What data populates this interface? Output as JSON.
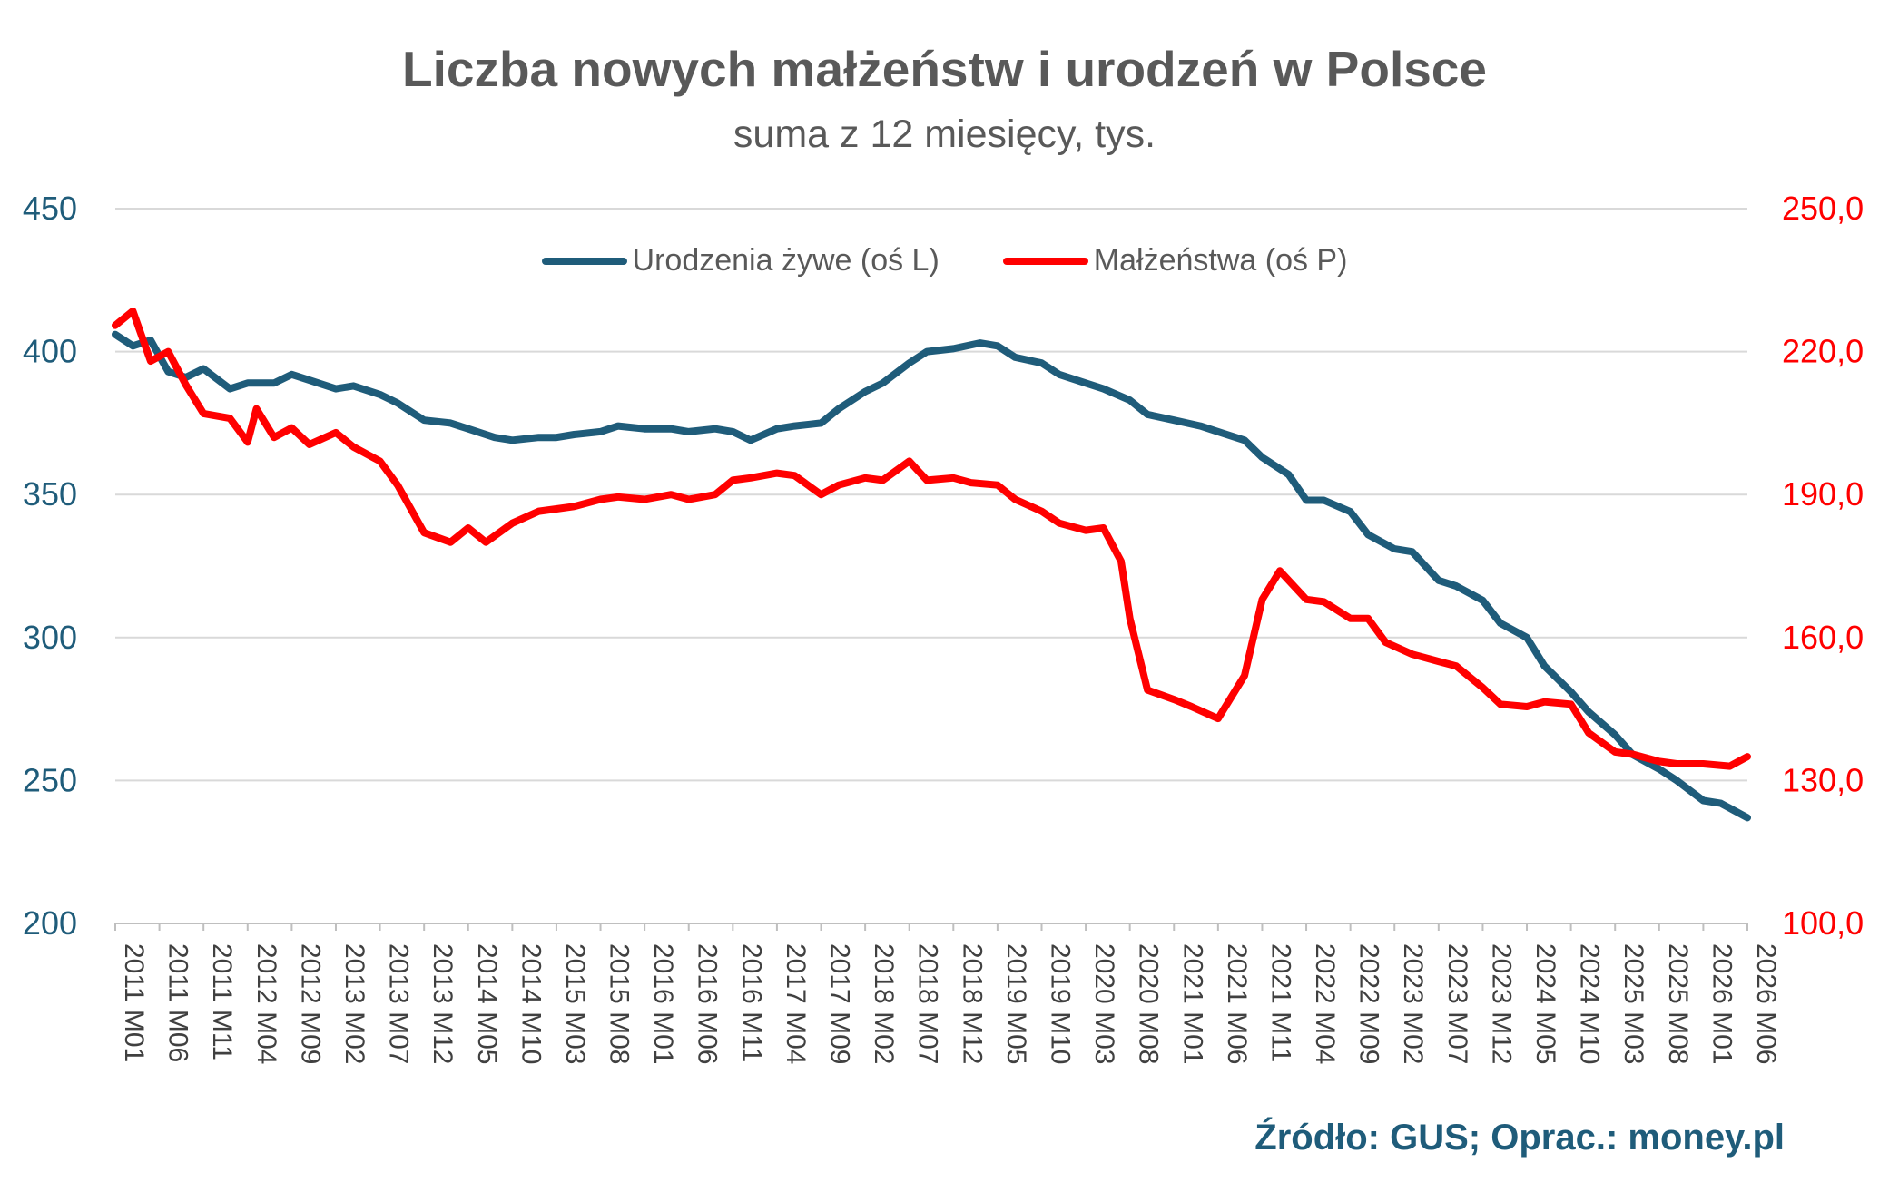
{
  "chart_data": {
    "type": "line",
    "title": "Liczba nowych małżeństw i urodzeń w Polsce",
    "subtitle": "suma z 12 miesięcy, tys.",
    "source": "Źródło: GUS; Oprac.: money.pl",
    "y_left": {
      "ylim": [
        200,
        450
      ],
      "ticks": [
        "200",
        "250",
        "300",
        "350",
        "400",
        "450"
      ]
    },
    "y_right": {
      "ylim": [
        100,
        250
      ],
      "ticks": [
        "100,0",
        "130,0",
        "160,0",
        "190,0",
        "220,0",
        "250,0"
      ]
    },
    "x_tick_labels": [
      "2011 M01",
      "2011 M06",
      "2011 M11",
      "2012 M04",
      "2012 M09",
      "2013 M02",
      "2013 M07",
      "2013 M12",
      "2014 M05",
      "2014 M10",
      "2015 M03",
      "2015 M08",
      "2016 M01",
      "2016 M06",
      "2016 M11",
      "2017 M04",
      "2017 M09",
      "2018 M02",
      "2018 M07",
      "2018 M12",
      "2019 M05",
      "2019 M10",
      "2020 M03",
      "2020 M08",
      "2021 M01",
      "2021 M06",
      "2021 M11",
      "2022 M04",
      "2022 M09",
      "2023 M02",
      "2023 M07",
      "2023 M12",
      "2024 M05",
      "2024 M10",
      "2025 M03",
      "2025 M08",
      "2026 M01",
      "2026 M06"
    ],
    "legend_position": "top-center",
    "grid": "horizontal",
    "series": [
      {
        "name": "Urodzenia żywe (oś L)",
        "axis": "left",
        "color": "#1f5c7a",
        "points": [
          [
            "2011 M01",
            406
          ],
          [
            "2011 M03",
            402
          ],
          [
            "2011 M05",
            404
          ],
          [
            "2011 M07",
            393
          ],
          [
            "2011 M09",
            391
          ],
          [
            "2011 M11",
            394
          ],
          [
            "2012 M02",
            387
          ],
          [
            "2012 M04",
            389
          ],
          [
            "2012 M07",
            389
          ],
          [
            "2012 M09",
            392
          ],
          [
            "2012 M11",
            390
          ],
          [
            "2013 M02",
            387
          ],
          [
            "2013 M04",
            388
          ],
          [
            "2013 M07",
            385
          ],
          [
            "2013 M09",
            382
          ],
          [
            "2013 M12",
            376
          ],
          [
            "2014 M03",
            375
          ],
          [
            "2014 M05",
            373
          ],
          [
            "2014 M08",
            370
          ],
          [
            "2014 M10",
            369
          ],
          [
            "2015 M01",
            370
          ],
          [
            "2015 M03",
            370
          ],
          [
            "2015 M05",
            371
          ],
          [
            "2015 M08",
            372
          ],
          [
            "2015 M10",
            374
          ],
          [
            "2016 M01",
            373
          ],
          [
            "2016 M04",
            373
          ],
          [
            "2016 M06",
            372
          ],
          [
            "2016 M09",
            373
          ],
          [
            "2016 M11",
            372
          ],
          [
            "2017 M01",
            369
          ],
          [
            "2017 M04",
            373
          ],
          [
            "2017 M06",
            374
          ],
          [
            "2017 M09",
            375
          ],
          [
            "2017 M11",
            380
          ],
          [
            "2018 M02",
            386
          ],
          [
            "2018 M04",
            389
          ],
          [
            "2018 M07",
            396
          ],
          [
            "2018 M09",
            400
          ],
          [
            "2018 M12",
            401
          ],
          [
            "2019 M03",
            403
          ],
          [
            "2019 M05",
            402
          ],
          [
            "2019 M07",
            398
          ],
          [
            "2019 M10",
            396
          ],
          [
            "2019 M12",
            392
          ],
          [
            "2020 M03",
            389
          ],
          [
            "2020 M05",
            387
          ],
          [
            "2020 M08",
            383
          ],
          [
            "2020 M10",
            378
          ],
          [
            "2021 M01",
            376
          ],
          [
            "2021 M04",
            374
          ],
          [
            "2021 M06",
            372
          ],
          [
            "2021 M09",
            369
          ],
          [
            "2021 M11",
            363
          ],
          [
            "2022 M02",
            357
          ],
          [
            "2022 M04",
            348
          ],
          [
            "2022 M06",
            348
          ],
          [
            "2022 M09",
            344
          ],
          [
            "2022 M11",
            336
          ],
          [
            "2023 M02",
            331
          ],
          [
            "2023 M04",
            330
          ],
          [
            "2023 M07",
            320
          ],
          [
            "2023 M09",
            318
          ],
          [
            "2023 M12",
            313
          ],
          [
            "2024 M02",
            305
          ],
          [
            "2024 M05",
            300
          ],
          [
            "2024 M07",
            290
          ],
          [
            "2024 M10",
            281
          ],
          [
            "2024 M12",
            274
          ],
          [
            "2025 M03",
            266
          ],
          [
            "2025 M05",
            259
          ],
          [
            "2025 M08",
            254
          ],
          [
            "2025 M10",
            250
          ],
          [
            "2026 M01",
            243
          ],
          [
            "2026 M03",
            242
          ],
          [
            "2026 M06",
            237
          ]
        ]
      },
      {
        "name": "Małżeństwa (oś P)",
        "axis": "right",
        "color": "#ff0000",
        "points": [
          [
            "2011 M01",
            225.5
          ],
          [
            "2011 M03",
            228.5
          ],
          [
            "2011 M05",
            218
          ],
          [
            "2011 M07",
            220
          ],
          [
            "2011 M09",
            213
          ],
          [
            "2011 M11",
            207
          ],
          [
            "2012 M02",
            206
          ],
          [
            "2012 M04",
            201
          ],
          [
            "2012 M05",
            208
          ],
          [
            "2012 M07",
            202
          ],
          [
            "2012 M09",
            204
          ],
          [
            "2012 M11",
            200.5
          ],
          [
            "2013 M02",
            203
          ],
          [
            "2013 M04",
            200
          ],
          [
            "2013 M07",
            197
          ],
          [
            "2013 M09",
            192
          ],
          [
            "2013 M12",
            182
          ],
          [
            "2014 M03",
            180
          ],
          [
            "2014 M05",
            183
          ],
          [
            "2014 M07",
            180
          ],
          [
            "2014 M10",
            184
          ],
          [
            "2015 M01",
            186.5
          ],
          [
            "2015 M03",
            187
          ],
          [
            "2015 M05",
            187.5
          ],
          [
            "2015 M08",
            189
          ],
          [
            "2015 M10",
            189.5
          ],
          [
            "2016 M01",
            189
          ],
          [
            "2016 M04",
            190
          ],
          [
            "2016 M06",
            189
          ],
          [
            "2016 M09",
            190
          ],
          [
            "2016 M11",
            193
          ],
          [
            "2017 M01",
            193.5
          ],
          [
            "2017 M04",
            194.5
          ],
          [
            "2017 M06",
            194
          ],
          [
            "2017 M09",
            190
          ],
          [
            "2017 M11",
            192
          ],
          [
            "2018 M02",
            193.5
          ],
          [
            "2018 M04",
            193
          ],
          [
            "2018 M07",
            197
          ],
          [
            "2018 M09",
            193
          ],
          [
            "2018 M12",
            193.5
          ],
          [
            "2019 M02",
            192.5
          ],
          [
            "2019 M05",
            192
          ],
          [
            "2019 M07",
            189
          ],
          [
            "2019 M10",
            186.5
          ],
          [
            "2019 M12",
            184
          ],
          [
            "2020 M03",
            182.5
          ],
          [
            "2020 M05",
            183
          ],
          [
            "2020 M07",
            176
          ],
          [
            "2020 M08",
            164
          ],
          [
            "2020 M10",
            149
          ],
          [
            "2021 M01",
            147
          ],
          [
            "2021 M03",
            145.5
          ],
          [
            "2021 M06",
            143
          ],
          [
            "2021 M09",
            152
          ],
          [
            "2021 M11",
            168
          ],
          [
            "2022 M01",
            174
          ],
          [
            "2022 M04",
            168
          ],
          [
            "2022 M06",
            167.5
          ],
          [
            "2022 M09",
            164
          ],
          [
            "2022 M11",
            164
          ],
          [
            "2023 M01",
            159
          ],
          [
            "2023 M04",
            156.5
          ],
          [
            "2023 M07",
            155
          ],
          [
            "2023 M09",
            154
          ],
          [
            "2023 M12",
            149.5
          ],
          [
            "2024 M02",
            146
          ],
          [
            "2024 M05",
            145.5
          ],
          [
            "2024 M07",
            146.5
          ],
          [
            "2024 M10",
            146
          ],
          [
            "2024 M12",
            140
          ],
          [
            "2025 M03",
            136
          ],
          [
            "2025 M05",
            135.5
          ],
          [
            "2025 M08",
            134
          ],
          [
            "2025 M10",
            133.5
          ],
          [
            "2026 M01",
            133.5
          ],
          [
            "2026 M04",
            133
          ],
          [
            "2026 M06",
            135
          ]
        ]
      }
    ]
  }
}
